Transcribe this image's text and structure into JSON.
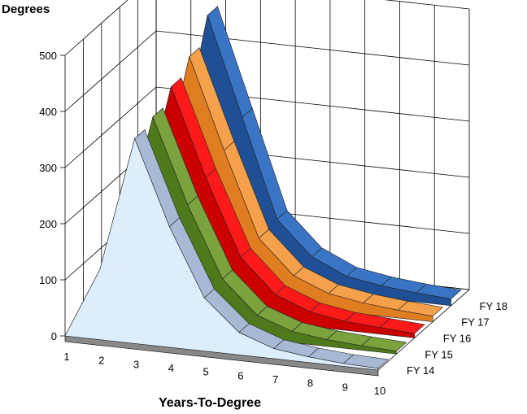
{
  "chart_data": {
    "type": "area",
    "ylabel": "Degrees",
    "xlabel": "Years-To-Degree",
    "ylim": [
      0,
      500
    ],
    "yticks": [
      0,
      100,
      200,
      300,
      400,
      500
    ],
    "categories": [
      "1",
      "2",
      "3",
      "4",
      "5",
      "6",
      "7",
      "8",
      "9",
      "10"
    ],
    "series": [
      {
        "name": "FY 14",
        "color_top": "#a8b9d6",
        "color_side": "#dceefb",
        "values": [
          0,
          125,
          365,
          215,
          95,
          40,
          18,
          10,
          5,
          3
        ]
      },
      {
        "name": "FY 15",
        "color_top": "#7aa33e",
        "color_side": "#4e7a1c",
        "values": [
          0,
          130,
          375,
          225,
          100,
          42,
          20,
          12,
          8,
          5
        ]
      },
      {
        "name": "FY 16",
        "color_top": "#ff1a1a",
        "color_side": "#cc0000",
        "values": [
          0,
          140,
          400,
          245,
          110,
          50,
          26,
          16,
          12,
          8
        ]
      },
      {
        "name": "FY 17",
        "color_top": "#f5a04a",
        "color_side": "#e07d20",
        "values": [
          0,
          150,
          425,
          265,
          115,
          55,
          30,
          20,
          14,
          10
        ]
      },
      {
        "name": "FY 18",
        "color_top": "#3a74c4",
        "color_side": "#1f4f94",
        "values": [
          0,
          160,
          470,
          295,
          120,
          60,
          32,
          22,
          16,
          12
        ]
      }
    ],
    "legend": "depth-axis-right",
    "grid": true
  }
}
